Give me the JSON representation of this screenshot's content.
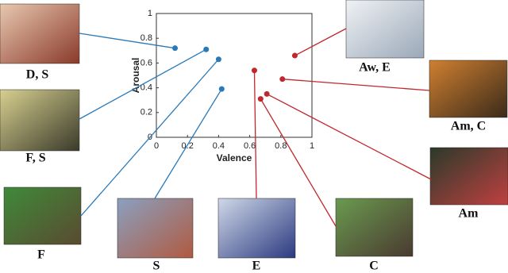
{
  "chart_data": {
    "type": "scatter",
    "xlabel": "Valence",
    "ylabel": "Arousal",
    "xlim": [
      0,
      1
    ],
    "ylim": [
      0,
      1
    ],
    "xticks": [
      0,
      0.2,
      0.4,
      0.6,
      0.8,
      1
    ],
    "yticks": [
      0,
      0.2,
      0.4,
      0.6,
      0.8,
      1
    ],
    "points": [
      {
        "label": "D, S",
        "x": 0.12,
        "y": 0.72,
        "color": "#2a7ab8"
      },
      {
        "label": "F, S",
        "x": 0.32,
        "y": 0.71,
        "color": "#2a7ab8"
      },
      {
        "label": "F",
        "x": 0.4,
        "y": 0.63,
        "color": "#2a7ab8"
      },
      {
        "label": "S",
        "x": 0.42,
        "y": 0.39,
        "color": "#2a7ab8"
      },
      {
        "label": "E",
        "x": 0.63,
        "y": 0.54,
        "color": "#c0282d"
      },
      {
        "label": "C",
        "x": 0.67,
        "y": 0.31,
        "color": "#c0282d"
      },
      {
        "label": "Am",
        "x": 0.71,
        "y": 0.35,
        "color": "#c0282d"
      },
      {
        "label": "Am, C",
        "x": 0.81,
        "y": 0.47,
        "color": "#c0282d"
      },
      {
        "label": "Aw, E",
        "x": 0.89,
        "y": 0.66,
        "color": "#c0282d"
      }
    ]
  }
}
